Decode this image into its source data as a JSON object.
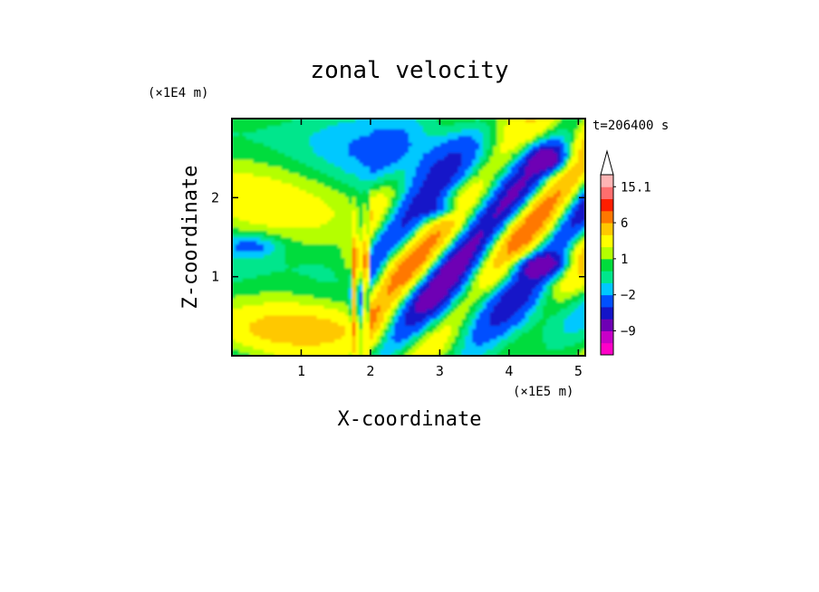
{
  "chart_data": {
    "type": "heatmap",
    "title": "zonal velocity",
    "time_label": "t=206400 s",
    "xlabel": "X-coordinate",
    "ylabel": "Z-coordinate",
    "x_unit": "(×1E5 m)",
    "y_unit": "(×1E4 m)",
    "xlim": [
      0,
      5.1
    ],
    "ylim": [
      0,
      3.0
    ],
    "x_ticks": [
      {
        "value": 1,
        "label": "1"
      },
      {
        "value": 2,
        "label": "2"
      },
      {
        "value": 3,
        "label": "3"
      },
      {
        "value": 4,
        "label": "4"
      },
      {
        "value": 5,
        "label": "5"
      }
    ],
    "y_ticks": [
      {
        "value": 1,
        "label": "1"
      },
      {
        "value": 2,
        "label": "2"
      }
    ],
    "colorbar": {
      "levels": [
        -15.1,
        -12,
        -9,
        -6,
        -4,
        -2,
        -1,
        0,
        1,
        2,
        4,
        6,
        9,
        12,
        15.1
      ],
      "colors": [
        "#ff00c8",
        "#c800c8",
        "#6e00b4",
        "#1414c8",
        "#0050ff",
        "#00c8ff",
        "#00e68c",
        "#00dc3c",
        "#b4ff00",
        "#ffff00",
        "#ffc800",
        "#ff7800",
        "#ff1e00",
        "#ff6e6e",
        "#ffb4b4"
      ],
      "labels": [
        {
          "value": 15.1,
          "label": "15.1"
        },
        {
          "value": 6,
          "label": "6"
        },
        {
          "value": 1,
          "label": "1"
        },
        {
          "value": -2,
          "label": "−2"
        },
        {
          "value": -9,
          "label": "−9"
        }
      ],
      "extend": "max"
    }
  }
}
